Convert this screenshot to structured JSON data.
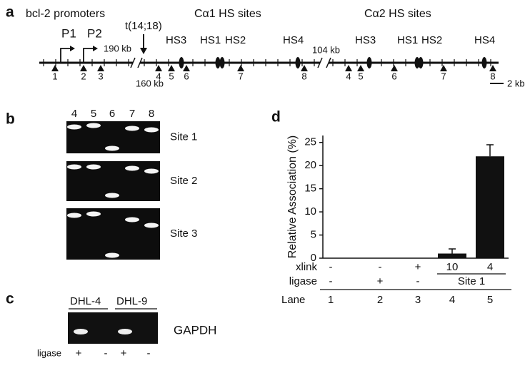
{
  "panel_a": {
    "label": "a",
    "promoters_title": "bcl-2 promoters",
    "promoters": [
      "P1",
      "P2"
    ],
    "distances": [
      "190 kb",
      "160 kb",
      "104 kb"
    ],
    "translocation": "t(14;18)",
    "calpha1": {
      "title": "Cα1 HS sites",
      "hs": [
        "HS3",
        "HS1",
        "HS2",
        "HS4"
      ]
    },
    "calpha2": {
      "title": "Cα2 HS sites",
      "hs": [
        "HS3",
        "HS1",
        "HS2",
        "HS4"
      ]
    },
    "sites": [
      "1",
      "2",
      "3",
      "4",
      "5",
      "6",
      "7",
      "8",
      "4",
      "5",
      "6",
      "7",
      "8"
    ],
    "scale": "2 kb"
  },
  "panel_b": {
    "label": "b",
    "lanes": [
      "4",
      "5",
      "6",
      "7",
      "8"
    ],
    "gels": [
      "Site 1",
      "Site 2",
      "Site 3"
    ]
  },
  "panel_c": {
    "label": "c",
    "samples": [
      "DHL-4",
      "DHL-9"
    ],
    "marker": "GAPDH",
    "row_label": "ligase",
    "ligase": [
      "+",
      "-",
      "+",
      "-"
    ]
  },
  "chart_data": {
    "type": "bar",
    "label": "d",
    "ylabel": "Relative Association (%)",
    "categories": [
      "1",
      "2",
      "3",
      "4",
      "5"
    ],
    "category_label": "Lane",
    "values": [
      0,
      0,
      0,
      1,
      22
    ],
    "errors": [
      null,
      null,
      null,
      1,
      2.5
    ],
    "color": "#111111",
    "ylim": [
      0,
      26.5
    ],
    "yticks": [
      0,
      5,
      10,
      15,
      20,
      25
    ],
    "conditions": [
      {
        "name": "xlink",
        "cells": [
          "-",
          "-",
          "+",
          "10",
          "4"
        ]
      },
      {
        "name": "ligase",
        "cells": [
          "-",
          "+",
          "-"
        ]
      }
    ],
    "site_label": "Site 1"
  }
}
